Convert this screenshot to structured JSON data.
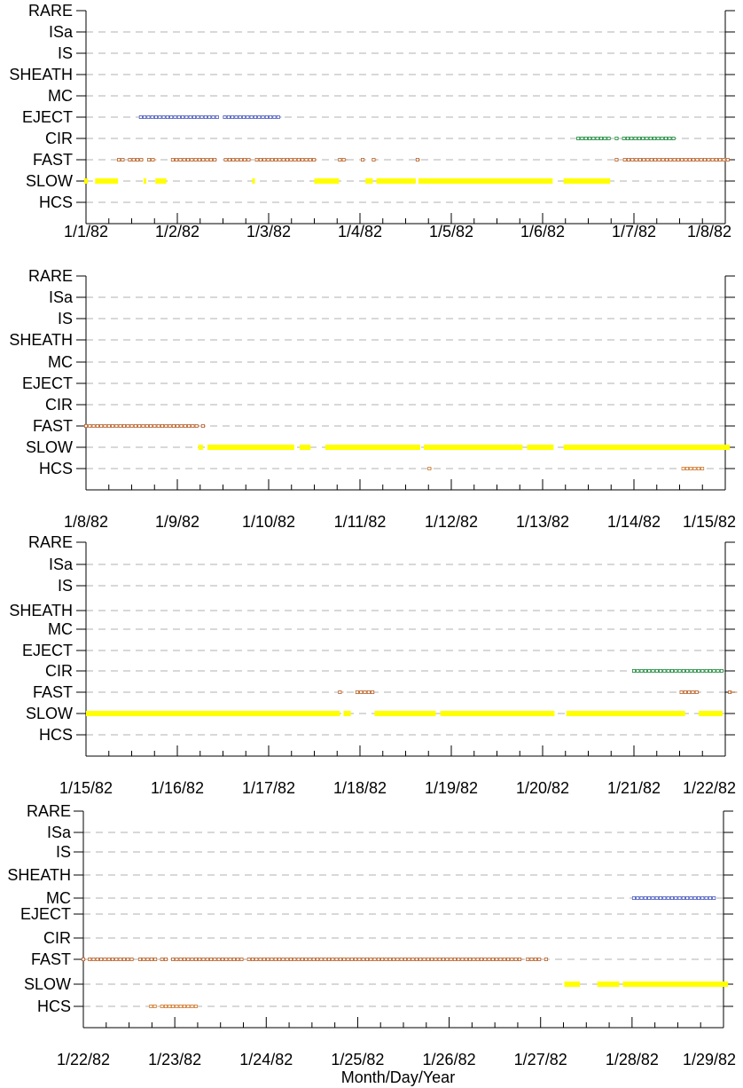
{
  "colors": {
    "SLOW": "#ffff00",
    "FAST": "#b8622a",
    "CIR": "#1a8a3a",
    "EJECT": "#4a5ac0",
    "MC": "#4a5ac0",
    "HCS": "#d07a30",
    "grid": "#b0b0b0",
    "axis": "#000000"
  },
  "chart_data": {
    "type": "scatter",
    "xlabel": "Month/Day/Year",
    "categories": [
      "HCS",
      "SLOW",
      "FAST",
      "CIR",
      "EJECT",
      "MC",
      "SHEATH",
      "IS",
      "ISa",
      "RARE"
    ],
    "panels": [
      {
        "x_range": [
          "1/1/82",
          "1/8/82"
        ],
        "x_ticks": [
          "1/1/82",
          "1/2/82",
          "1/3/82",
          "1/4/82",
          "1/5/82",
          "1/6/82",
          "1/7/82",
          "1/8/82"
        ],
        "series": [
          {
            "category": "SLOW",
            "style": "bar",
            "segments": [
              [
                -0.02,
                0.02
              ],
              [
                0.1,
                0.35
              ],
              [
                0.63,
                0.66
              ],
              [
                0.76,
                0.88
              ],
              [
                1.82,
                1.85
              ],
              [
                2.5,
                2.77
              ],
              [
                3.06,
                3.14
              ],
              [
                3.18,
                3.61
              ],
              [
                3.64,
                5.11
              ],
              [
                5.23,
                5.74
              ]
            ]
          },
          {
            "category": "FAST",
            "style": "marker",
            "segments": [
              [
                0.36,
                0.42
              ],
              [
                0.48,
                0.63
              ],
              [
                0.69,
                0.77
              ],
              [
                0.95,
                1.43
              ],
              [
                1.53,
                1.81
              ],
              [
                1.87,
                2.53
              ],
              [
                2.78,
                2.86
              ],
              [
                3.03,
                3.05
              ],
              [
                3.15,
                3.18
              ],
              [
                3.63,
                3.66
              ],
              [
                5.81,
                5.84
              ],
              [
                5.9,
                7.14
              ]
            ]
          },
          {
            "category": "CIR",
            "style": "marker",
            "segments": [
              [
                5.39,
                5.75
              ],
              [
                5.81,
                5.84
              ],
              [
                5.89,
                6.46
              ]
            ]
          },
          {
            "category": "EJECT",
            "style": "marker",
            "segments": [
              [
                0.6,
                1.44
              ],
              [
                1.52,
                2.14
              ]
            ]
          }
        ]
      },
      {
        "x_range": [
          "1/8/82",
          "1/15/82"
        ],
        "x_ticks": [
          "1/8/82",
          "1/9/82",
          "1/10/82",
          "1/11/82",
          "1/12/82",
          "1/13/82",
          "1/14/82",
          "1/15/82"
        ],
        "series": [
          {
            "category": "SLOW",
            "style": "bar",
            "segments": [
              [
                1.23,
                1.28
              ],
              [
                1.33,
                2.28
              ],
              [
                2.34,
                2.46
              ],
              [
                2.62,
                3.66
              ],
              [
                3.7,
                4.78
              ],
              [
                4.83,
                5.12
              ],
              [
                5.23,
                7.2
              ]
            ]
          },
          {
            "category": "FAST",
            "style": "marker",
            "segments": [
              [
                0.0,
                1.24
              ],
              [
                1.28,
                1.31
              ]
            ]
          },
          {
            "category": "HCS",
            "style": "marker",
            "segments": [
              [
                3.76,
                3.79
              ],
              [
                6.54,
                6.76
              ]
            ]
          }
        ]
      },
      {
        "x_range": [
          "1/15/82",
          "1/22/82"
        ],
        "x_ticks": [
          "1/15/82",
          "1/16/82",
          "1/17/82",
          "1/18/82",
          "1/19/82",
          "1/20/82",
          "1/21/82",
          "1/22/82"
        ],
        "series": [
          {
            "category": "SLOW",
            "style": "bar",
            "segments": [
              [
                0.0,
                2.78
              ],
              [
                2.82,
                2.9
              ],
              [
                3.16,
                3.83
              ],
              [
                3.88,
                5.13
              ],
              [
                5.26,
                6.56
              ],
              [
                6.71,
                6.97
              ]
            ]
          },
          {
            "category": "FAST",
            "style": "marker",
            "segments": [
              [
                2.78,
                2.82
              ],
              [
                2.97,
                3.16
              ],
              [
                6.52,
                6.72
              ],
              [
                7.05,
                7.08
              ],
              [
                7.13,
                7.17
              ]
            ]
          },
          {
            "category": "CIR",
            "style": "marker",
            "segments": [
              [
                6.0,
                6.96
              ]
            ]
          }
        ]
      },
      {
        "x_range": [
          "1/22/82",
          "1/29/82"
        ],
        "x_ticks": [
          "1/22/82",
          "1/23/82",
          "1/24/82",
          "1/25/82",
          "1/26/82",
          "1/27/82",
          "1/28/82",
          "1/29/82"
        ],
        "series": [
          {
            "category": "SLOW",
            "style": "bar",
            "segments": [
              [
                5.26,
                5.43
              ],
              [
                5.62,
                5.86
              ],
              [
                5.9,
                7.18
              ]
            ]
          },
          {
            "category": "FAST",
            "style": "marker",
            "segments": [
              [
                0.0,
                0.03
              ],
              [
                0.07,
                0.56
              ],
              [
                0.62,
                0.81
              ],
              [
                0.86,
                0.93
              ],
              [
                0.98,
                1.77
              ],
              [
                1.81,
                4.81
              ],
              [
                4.86,
                5.02
              ],
              [
                5.06,
                5.08
              ]
            ]
          },
          {
            "category": "MC",
            "style": "marker",
            "segments": [
              [
                6.02,
                6.9
              ]
            ]
          },
          {
            "category": "HCS",
            "style": "marker",
            "segments": [
              [
                0.74,
                0.81
              ],
              [
                0.86,
                0.95
              ],
              [
                0.98,
                1.23
              ]
            ]
          }
        ]
      }
    ]
  }
}
